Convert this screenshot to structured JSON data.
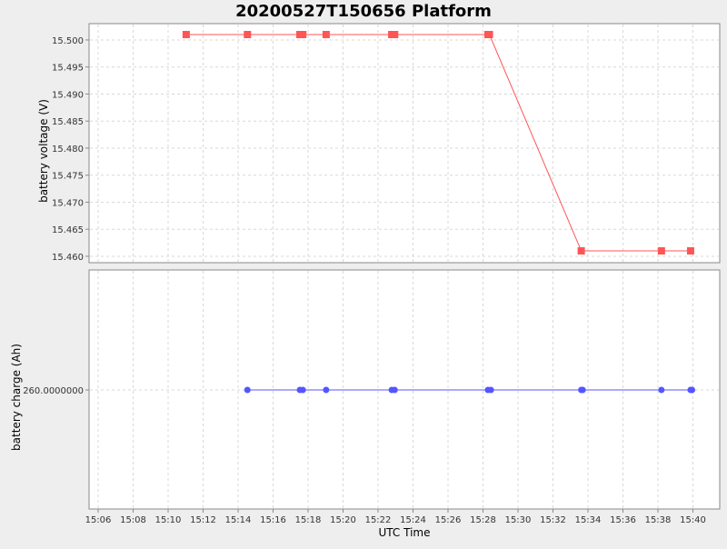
{
  "chart_data": {
    "title": "20200527T150656 Platform",
    "xlabel": "UTC Time",
    "x_ticks": [
      "15:06",
      "15:08",
      "15:10",
      "15:12",
      "15:14",
      "15:16",
      "15:18",
      "15:20",
      "15:22",
      "15:24",
      "15:26",
      "15:28",
      "15:30",
      "15:32",
      "15:34",
      "15:36",
      "15:38",
      "15:40"
    ],
    "grid": true,
    "plots": [
      {
        "type": "line",
        "ylabel": "battery voltage (V)",
        "y_ticks": [
          "15.500",
          "15.495",
          "15.490",
          "15.485",
          "15.480",
          "15.475",
          "15.470",
          "15.465",
          "15.460"
        ],
        "series": [
          {
            "marker": "square",
            "color": "#ff5555",
            "x": [
              "15:11:02",
              "15:14:32",
              "15:17:32",
              "15:17:42",
              "15:19:02",
              "15:22:47",
              "15:22:57",
              "15:28:17",
              "15:28:22",
              "15:33:37",
              "15:38:12",
              "15:39:52"
            ],
            "y": [
              15.501,
              15.501,
              15.501,
              15.501,
              15.501,
              15.501,
              15.501,
              15.501,
              15.501,
              15.461,
              15.461,
              15.461
            ]
          }
        ]
      },
      {
        "type": "line",
        "ylabel": "battery charge (Ah)",
        "y_ticks": [
          "260.0000000"
        ],
        "series": [
          {
            "marker": "circle",
            "color": "#5555ff",
            "x": [
              "15:14:32",
              "15:17:32",
              "15:17:42",
              "15:19:02",
              "15:22:47",
              "15:22:57",
              "15:28:17",
              "15:28:27",
              "15:33:37",
              "15:33:42",
              "15:38:12",
              "15:39:52",
              "15:39:57"
            ],
            "y": [
              260,
              260,
              260,
              260,
              260,
              260,
              260,
              260,
              260,
              260,
              260,
              260,
              260
            ]
          }
        ]
      }
    ]
  }
}
